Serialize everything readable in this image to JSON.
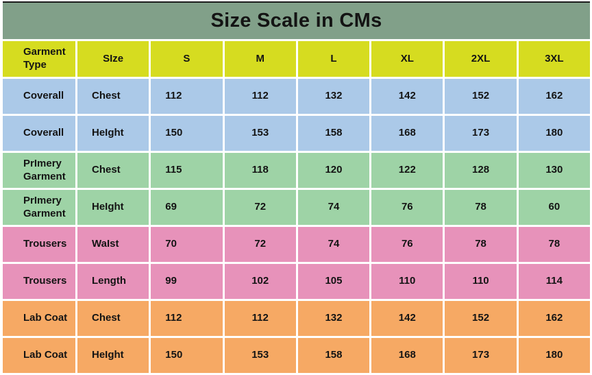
{
  "title": "Size Scale in CMs",
  "colors": {
    "title_bg": "#81a089",
    "top_line": "#1c1c1c",
    "header_bg": "#d6dc20",
    "text": "#141414",
    "coverall": "#abc9e8",
    "primery": "#9ed3a6",
    "trousers": "#e792ba",
    "labcoat": "#f6a964"
  },
  "table": {
    "columns": [
      "Garment\nType",
      "SIze",
      "S",
      "M",
      "L",
      "XL",
      "2XL",
      "3XL"
    ],
    "rows": [
      {
        "color": "coverall",
        "cells": [
          "Coverall",
          "Chest",
          "112",
          "112",
          "132",
          "142",
          "152",
          "162"
        ]
      },
      {
        "color": "coverall",
        "cells": [
          "Coverall",
          "HeIght",
          "150",
          "153",
          "158",
          "168",
          "173",
          "180"
        ]
      },
      {
        "color": "primery",
        "cells": [
          "PrImery\nGarment",
          "Chest",
          "115",
          "118",
          "120",
          "122",
          "128",
          "130"
        ]
      },
      {
        "color": "primery",
        "cells": [
          "PrImery\nGarment",
          "HeIght",
          "69",
          "72",
          "74",
          "76",
          "78",
          "60"
        ]
      },
      {
        "color": "trousers",
        "cells": [
          "Trousers",
          "WaIst",
          "70",
          "72",
          "74",
          "76",
          "78",
          "78"
        ]
      },
      {
        "color": "trousers",
        "cells": [
          "Trousers",
          "Length",
          "99",
          "102",
          "105",
          "110",
          "110",
          "114"
        ]
      },
      {
        "color": "labcoat",
        "cells": [
          "Lab Coat",
          "Chest",
          "112",
          "112",
          "132",
          "142",
          "152",
          "162"
        ]
      },
      {
        "color": "labcoat",
        "cells": [
          "Lab Coat",
          "HeIght",
          "150",
          "153",
          "158",
          "168",
          "173",
          "180"
        ]
      }
    ]
  },
  "chart_data": {
    "type": "table",
    "title": "Size Scale in CMs",
    "columns": [
      "Garment Type",
      "SIze",
      "S",
      "M",
      "L",
      "XL",
      "2XL",
      "3XL"
    ],
    "rows": [
      [
        "Coverall",
        "Chest",
        112,
        112,
        132,
        142,
        152,
        162
      ],
      [
        "Coverall",
        "HeIght",
        150,
        153,
        158,
        168,
        173,
        180
      ],
      [
        "PrImery Garment",
        "Chest",
        115,
        118,
        120,
        122,
        128,
        130
      ],
      [
        "PrImery Garment",
        "HeIght",
        69,
        72,
        74,
        76,
        78,
        60
      ],
      [
        "Trousers",
        "WaIst",
        70,
        72,
        74,
        76,
        78,
        78
      ],
      [
        "Trousers",
        "Length",
        99,
        102,
        105,
        110,
        110,
        114
      ],
      [
        "Lab Coat",
        "Chest",
        112,
        112,
        132,
        142,
        152,
        162
      ],
      [
        "Lab Coat",
        "HeIght",
        150,
        153,
        158,
        168,
        173,
        180
      ]
    ]
  }
}
